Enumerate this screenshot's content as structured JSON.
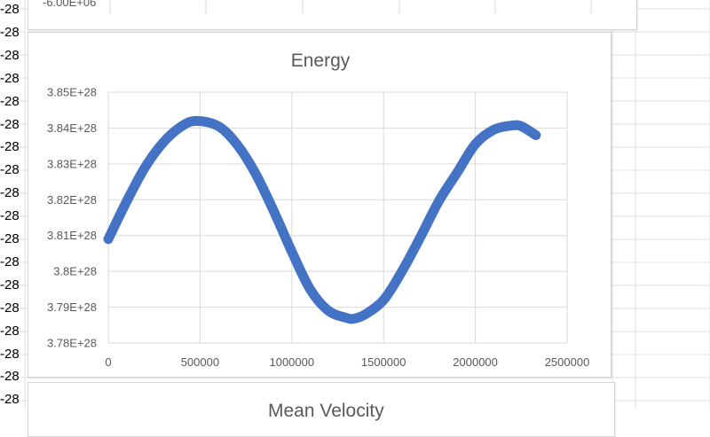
{
  "row_fragments": [
    "-28",
    "-28",
    "-28",
    "-28",
    "-28",
    "-28",
    "-28",
    "-28",
    "-28",
    "-28",
    "-28",
    "-28",
    "-28",
    "-28",
    "-28",
    "-28",
    "-28",
    "-28"
  ],
  "top_chart": {
    "tick_label": "-6.00E+06"
  },
  "bottom_chart": {
    "title": "Mean Velocity"
  },
  "chart_data": {
    "type": "line",
    "title": "Energy",
    "xlabel": "",
    "ylabel": "",
    "xlim": [
      0,
      2500000
    ],
    "ylim": [
      3.78e+28,
      3.85e+28
    ],
    "x_ticks": [
      "0",
      "500000",
      "1000000",
      "1500000",
      "2000000",
      "2500000"
    ],
    "y_ticks": [
      "3.78E+28",
      "3.79E+28",
      "3.8E+28",
      "3.81E+28",
      "3.82E+28",
      "3.83E+28",
      "3.84E+28",
      "3.85E+28"
    ],
    "grid": true,
    "legend": "none",
    "line_color": "#4472c4",
    "series": [
      {
        "x": [
          0,
          100000,
          200000,
          300000,
          400000,
          480000,
          600000,
          700000,
          800000,
          900000,
          1000000,
          1100000,
          1200000,
          1300000,
          1340000,
          1400000,
          1500000,
          1600000,
          1700000,
          1800000,
          1900000,
          2000000,
          2100000,
          2200000,
          2250000,
          2330000
        ],
        "values": [
          3.809e+28,
          3.8195e+28,
          3.829e+28,
          3.836e+28,
          3.8405e+28,
          3.842e+28,
          3.8405e+28,
          3.8355e+28,
          3.8275e+28,
          3.817e+28,
          3.8055e+28,
          3.795e+28,
          3.789e+28,
          3.787e+28,
          3.7868e+28,
          3.788e+28,
          3.792e+28,
          3.8e+28,
          3.8095e+28,
          3.8195e+28,
          3.8275e+28,
          3.8355e+28,
          3.8395e+28,
          3.8407e+28,
          3.8405e+28,
          3.838e+28
        ]
      }
    ]
  }
}
